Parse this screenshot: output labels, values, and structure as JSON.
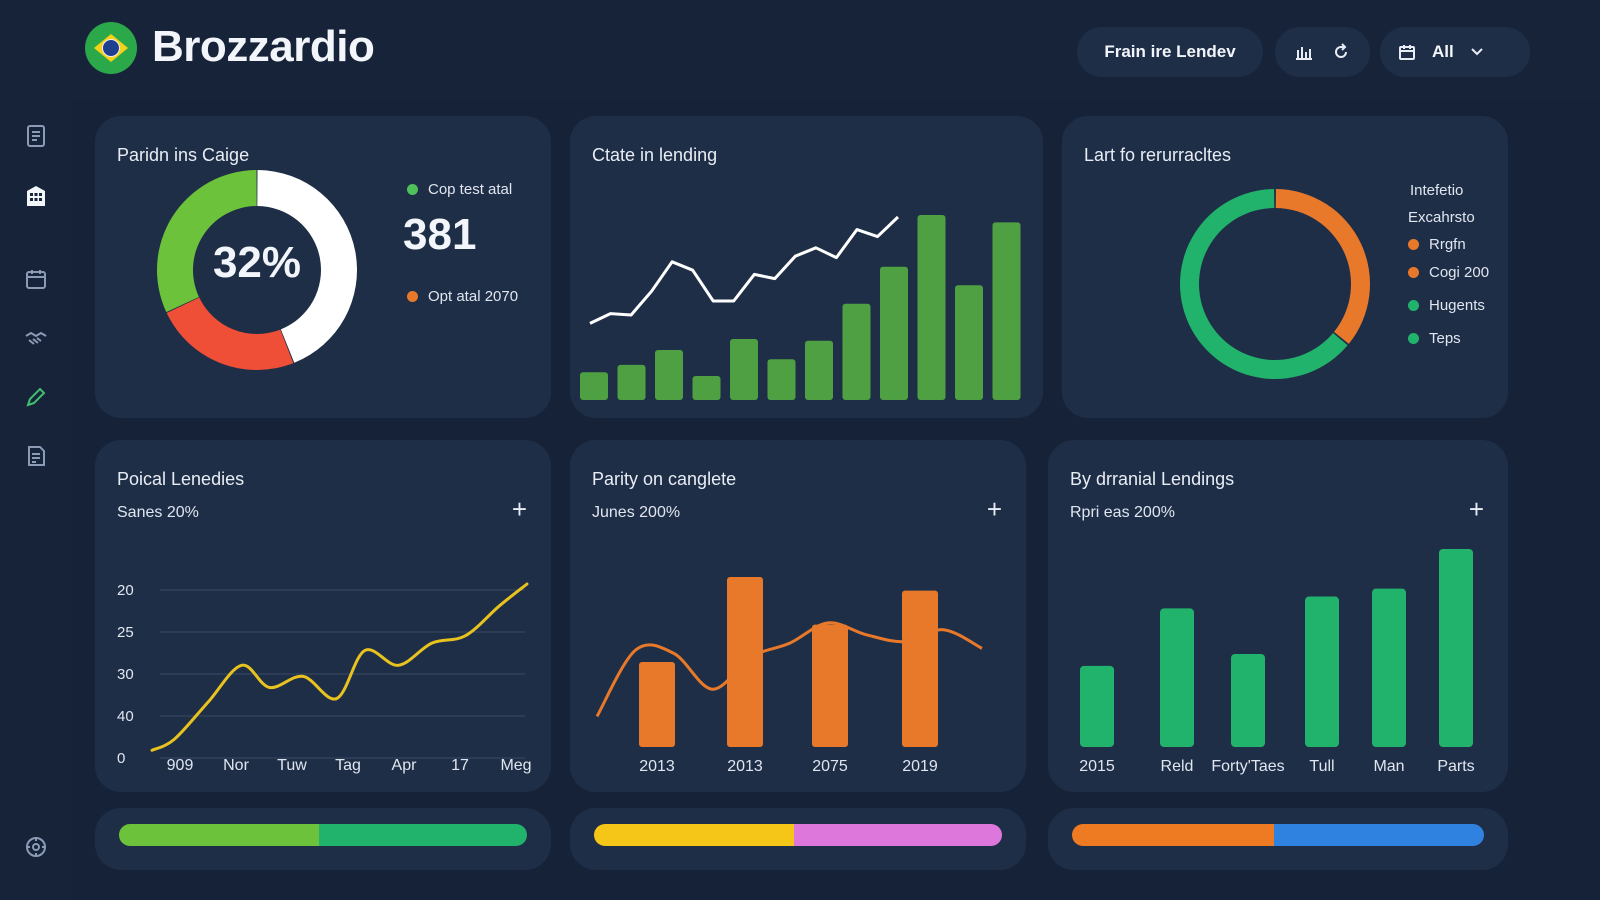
{
  "header": {
    "brand": "Brozzardio",
    "filter_pill": "Frain ire Lendev",
    "view_select": "All"
  },
  "sidebar": {
    "icons": [
      "document-icon",
      "building-icon",
      "calendar-icon",
      "handshake-icon",
      "pen-icon",
      "report-icon",
      "settings-icon"
    ]
  },
  "cards": {
    "donut_card": {
      "title": "Paridn ins Caige",
      "center_label": "32%",
      "legend_top": "Cop test atal",
      "big_number": "381",
      "legend_bottom": "Opt atal 2070"
    },
    "combo_card": {
      "title": "Ctate in lending"
    },
    "ring_card": {
      "title": "Lart fo rerurracltes",
      "legend_header_1": "Intefetio",
      "legend_header_2": "Excahrsto",
      "legend": [
        {
          "label": "Rrgfn",
          "color": "#e8792a"
        },
        {
          "label": "Cogi 200",
          "color": "#e8792a"
        },
        {
          "label": "Hugents",
          "color": "#21b26b"
        },
        {
          "label": "Teps",
          "color": "#21b26b"
        }
      ]
    },
    "line_card": {
      "title": "Poical Lenedies",
      "subtitle": "Sanes 20%",
      "plus": "+"
    },
    "orange_card": {
      "title": "Parity on canglete",
      "subtitle": "Junes 200%",
      "plus": "+"
    },
    "green_card": {
      "title": "By drranial Lendings",
      "subtitle": "Rpri eas 200%",
      "plus": "+"
    }
  },
  "chart_data": [
    {
      "type": "pie",
      "title": "Paridn ins Caige",
      "slices": [
        {
          "label": "Cop test atal",
          "value": 32,
          "color": "#6cc23a"
        },
        {
          "label": "Opt atal 2070",
          "value": 24,
          "color": "#ef4f37"
        },
        {
          "label": "",
          "value": 44,
          "color": "#ffffff"
        }
      ]
    },
    {
      "type": "bar",
      "title": "Ctate in lending",
      "series": [
        {
          "values": [
            15,
            19,
            27,
            13,
            33,
            22,
            32,
            52,
            72,
            100,
            62,
            96
          ],
          "color": "#4fa043"
        },
        {
          "values": [
            24,
            31,
            30,
            47,
            68,
            62,
            40,
            40,
            59,
            56,
            72,
            78,
            71,
            91,
            86,
            100
          ],
          "color": "#ffffff",
          "type": "line"
        }
      ]
    },
    {
      "type": "pie",
      "title": "Lart fo rerurracltes",
      "slices": [
        {
          "label": "orange",
          "value": 36,
          "color": "#e8792a"
        },
        {
          "label": "green",
          "value": 64,
          "color": "#21b26b"
        }
      ]
    },
    {
      "type": "line",
      "title": "Poical Lenedies",
      "xlabels": [
        "909",
        "Nor",
        "Tuw",
        "Tag",
        "Apr",
        "17",
        "Meg"
      ],
      "ytick_labels": [
        "20",
        "25",
        "30",
        "40",
        "0"
      ],
      "ylim": [
        0,
        40
      ],
      "x": [
        0,
        0.4,
        1,
        1.6,
        2.1,
        2.7,
        3.3,
        3.8,
        4.4,
        5.0,
        5.6,
        6.2,
        6.7
      ],
      "values": [
        1,
        4,
        14,
        24,
        18,
        21,
        15,
        28,
        24,
        30,
        32,
        40,
        46
      ],
      "color": "#e8c21e"
    },
    {
      "type": "bar",
      "title": "Parity on canglete",
      "categories": [
        "2013",
        "2013",
        "2075",
        "2019"
      ],
      "values": [
        50,
        100,
        72,
        92
      ],
      "color": "#e8792a",
      "overlay_line": [
        18,
        57,
        55,
        34,
        53,
        61,
        73,
        66,
        62,
        69,
        58
      ],
      "overlay_color": "#e8792a"
    },
    {
      "type": "bar",
      "title": "By drranial Lendings",
      "categories": [
        "2015",
        "Reld",
        "Forty'Taes",
        "Tull",
        "Man",
        "Parts"
      ],
      "values": [
        41,
        70,
        47,
        76,
        80,
        100
      ],
      "color": "#21b26b"
    }
  ],
  "progress_bars": [
    {
      "segments": [
        {
          "value": 49,
          "color": "#6cc23a"
        },
        {
          "value": 51,
          "color": "#21b26b"
        }
      ]
    },
    {
      "segments": [
        {
          "value": 49,
          "color": "#f5c518"
        },
        {
          "value": 51,
          "color": "#de77dc"
        }
      ]
    },
    {
      "segments": [
        {
          "value": 49,
          "color": "#ee7a22"
        },
        {
          "value": 51,
          "color": "#2f82e0"
        }
      ]
    }
  ]
}
